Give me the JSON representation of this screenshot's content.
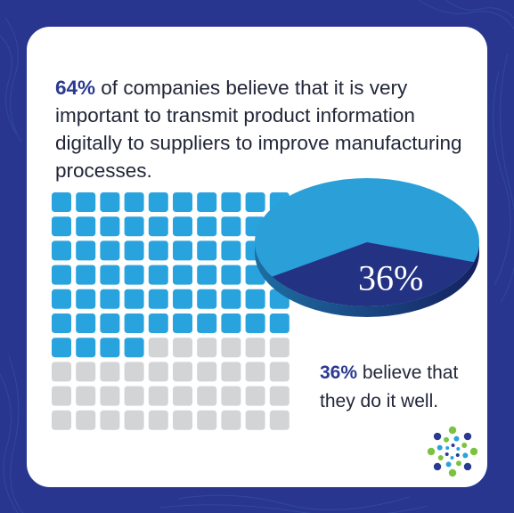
{
  "headline": {
    "highlight": "64%",
    "text": " of companies believe that it is very important to transmit product information digitally to suppliers to improve manufacturing processes."
  },
  "subtext": {
    "highlight": "36%",
    "text": " believe that they do it well."
  },
  "chart_data": [
    {
      "type": "waffle",
      "total": 100,
      "rows": 10,
      "cols": 10,
      "filled": 64,
      "filled_color": "#29a3de",
      "empty_color": "#d3d4d6"
    },
    {
      "type": "pie",
      "slices": [
        {
          "value": 64,
          "color": "#2a9fd8"
        },
        {
          "value": 36,
          "color": "#233282",
          "label": "36%"
        }
      ]
    }
  ],
  "colors": {
    "background": "#28368f",
    "card": "#ffffff",
    "accent_navy": "#2a3a8f",
    "accent_blue": "#29a3de",
    "grey": "#d3d4d6",
    "logo_green": "#7cc242"
  },
  "logo": {
    "icon": "dotted-starburst-logo-icon"
  }
}
